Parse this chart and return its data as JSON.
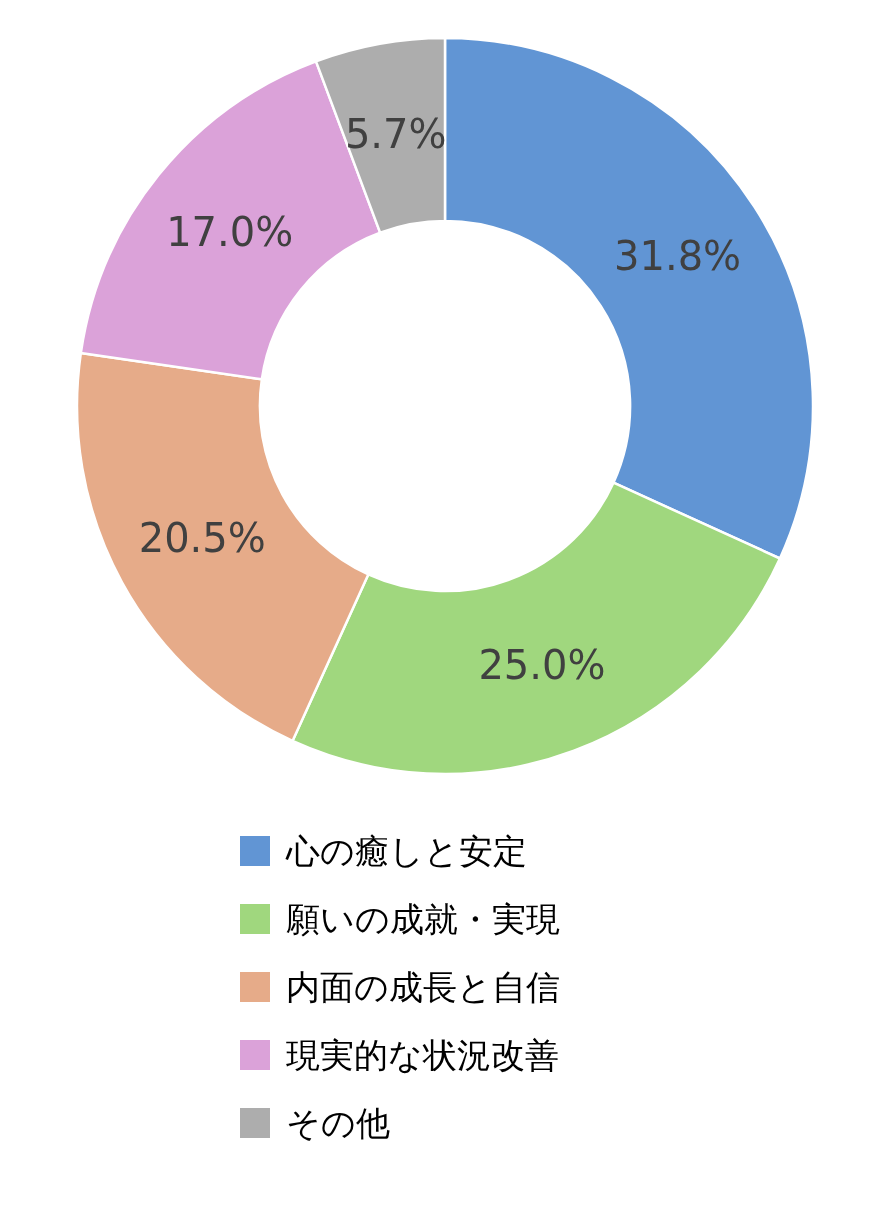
{
  "chart_data": {
    "type": "donut",
    "categories": [
      "心の癒しと安定",
      "願いの成就・実現",
      "内面の成長と自信",
      "現実的な状況改善",
      "その他"
    ],
    "values": [
      31.8,
      25.0,
      20.5,
      17.0,
      5.7
    ],
    "colors": [
      "#6195d4",
      "#a0d77e",
      "#e6ab89",
      "#dba2d9",
      "#adadad"
    ],
    "value_labels": [
      "31.8%",
      "25.0%",
      "20.5%",
      "17.0%",
      "5.7%"
    ],
    "legend": "bottom"
  }
}
